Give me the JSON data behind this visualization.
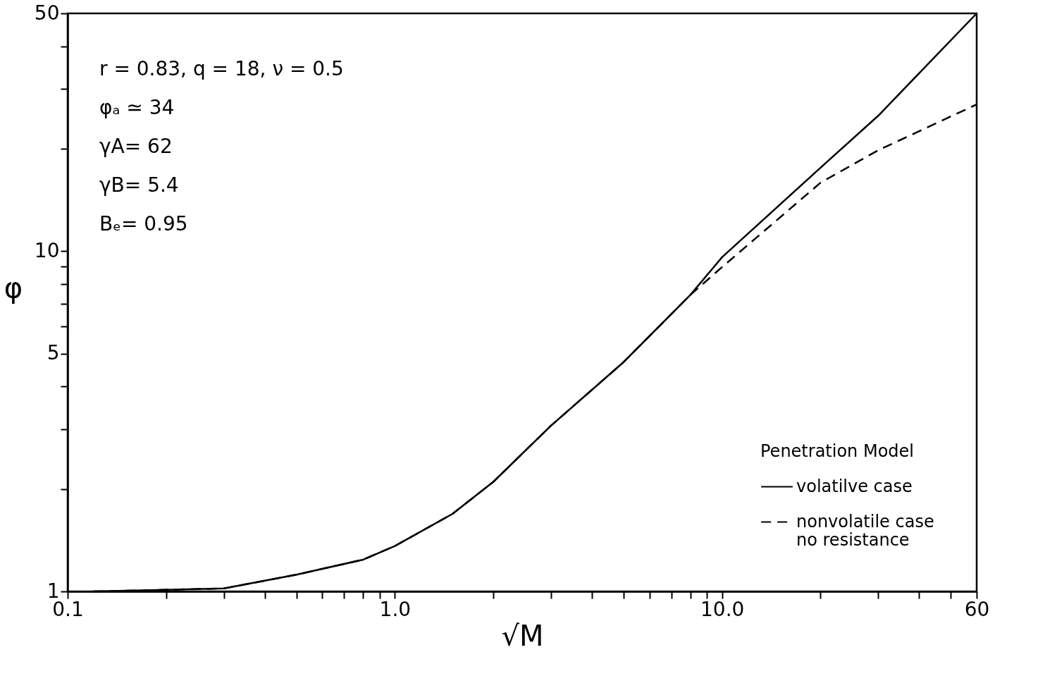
{
  "chart_data": {
    "type": "line",
    "xlabel": "√M",
    "ylabel": "φ",
    "legend_title": "Penetration Model",
    "log": "xy",
    "grid": false,
    "legend": "bottom right",
    "xlim": [
      0.1,
      60
    ],
    "ylim": [
      1,
      50
    ],
    "xticks": [
      {
        "value": 0.1,
        "label": "0.1"
      },
      {
        "value": 0.2,
        "label": null
      },
      {
        "value": 0.3,
        "label": null
      },
      {
        "value": 0.4,
        "label": null
      },
      {
        "value": 0.5,
        "label": null
      },
      {
        "value": 0.6,
        "label": null
      },
      {
        "value": 0.7,
        "label": null
      },
      {
        "value": 0.8,
        "label": null
      },
      {
        "value": 0.9,
        "label": null
      },
      {
        "value": 1,
        "label": "1.0"
      },
      {
        "value": 2,
        "label": null
      },
      {
        "value": 3,
        "label": null
      },
      {
        "value": 4,
        "label": null
      },
      {
        "value": 5,
        "label": null
      },
      {
        "value": 6,
        "label": null
      },
      {
        "value": 7,
        "label": null
      },
      {
        "value": 8,
        "label": null
      },
      {
        "value": 9,
        "label": null
      },
      {
        "value": 10,
        "label": "10.0"
      },
      {
        "value": 20,
        "label": null
      },
      {
        "value": 30,
        "label": null
      },
      {
        "value": 40,
        "label": null
      },
      {
        "value": 50,
        "label": null
      },
      60
    ],
    "yticks": [
      1,
      {
        "value": 2,
        "label": null
      },
      {
        "value": 3,
        "label": null
      },
      {
        "value": 4,
        "label": null
      },
      5,
      {
        "value": 6,
        "label": null
      },
      {
        "value": 7,
        "label": null
      },
      {
        "value": 8,
        "label": null
      },
      {
        "value": 9,
        "label": null
      },
      10,
      {
        "value": 20,
        "label": null
      },
      {
        "value": 30,
        "label": null
      },
      {
        "value": 40,
        "label": null
      },
      50
    ],
    "annotations": [
      "r = 0.83, q = 18, ν = 0.5",
      "φₐ ≃ 34",
      "γA= 62",
      "γB= 5.4",
      "Bₑ= 0.95"
    ],
    "series": [
      {
        "name": "volatilve case",
        "color": "#000000",
        "line_style": "solid",
        "x": [
          0.12,
          0.3,
          0.5,
          0.8,
          1.0,
          1.5,
          2,
          3,
          5,
          8,
          10,
          20,
          30,
          60
        ],
        "values": [
          1.0,
          1.02,
          1.12,
          1.24,
          1.36,
          1.69,
          2.1,
          3.07,
          4.72,
          7.44,
          9.6,
          17.6,
          25,
          50
        ]
      },
      {
        "name": "nonvolatile case\nno resistance",
        "color": "#000000",
        "line_style": "dashed",
        "x": [
          0.12,
          0.3,
          0.5,
          0.8,
          1.0,
          1.5,
          2,
          3,
          5,
          8,
          10,
          20,
          30,
          60
        ],
        "values": [
          1.0,
          1.02,
          1.12,
          1.24,
          1.36,
          1.69,
          2.1,
          3.07,
          4.72,
          7.44,
          8.98,
          15.9,
          19.8,
          27
        ]
      }
    ]
  }
}
